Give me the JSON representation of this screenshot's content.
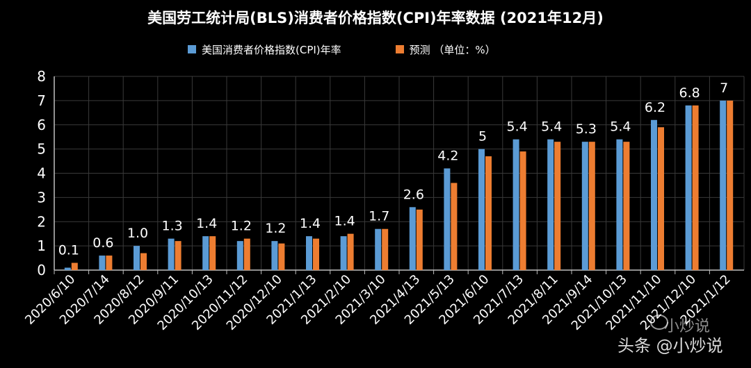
{
  "chart_data": {
    "type": "bar",
    "title": "美国劳工统计局(BLS)消费者价格指数(CPI)年率数据 (2021年12月)",
    "categories": [
      "2020/6/10",
      "2020/7/14",
      "2020/8/12",
      "2020/9/11",
      "2020/10/13",
      "2020/11/12",
      "2020/12/10",
      "2021/1/13",
      "2021/2/10",
      "2021/3/10",
      "2021/4/13",
      "2021/5/13",
      "2021/6/10",
      "2021/7/13",
      "2021/8/11",
      "2021/9/14",
      "2021/10/13",
      "2021/11/10",
      "2021/12/10",
      "2021/1/12"
    ],
    "series": [
      {
        "name": "美国消费者价格指数(CPI)年率",
        "color": "#5B9BD5",
        "values": [
          0.1,
          0.6,
          1.0,
          1.3,
          1.4,
          1.2,
          1.2,
          1.4,
          1.4,
          1.7,
          2.6,
          4.2,
          5,
          5.4,
          5.4,
          5.3,
          5.4,
          6.2,
          6.8,
          7
        ]
      },
      {
        "name": "预测 （单位：%）",
        "color": "#ED7D31",
        "values": [
          0.3,
          0.6,
          0.7,
          1.2,
          1.4,
          1.3,
          1.1,
          1.3,
          1.5,
          1.7,
          2.5,
          3.6,
          4.7,
          4.9,
          5.3,
          5.3,
          5.3,
          5.9,
          6.8,
          7
        ]
      }
    ],
    "data_labels": [
      "0.1",
      "0.6",
      "1.0",
      "1.3",
      "1.4",
      "1.2",
      "1.2",
      "1.4",
      "1.4",
      "1.7",
      "2.6",
      "4.2",
      "5",
      "5.4",
      "5.4",
      "5.3",
      "5.4",
      "6.2",
      "6.8",
      "7"
    ],
    "y_ticks": [
      "0",
      "1",
      "2",
      "3",
      "4",
      "5",
      "6",
      "7",
      "8"
    ],
    "ylim": [
      0,
      8
    ],
    "grid": true,
    "legend": "top"
  },
  "watermark": {
    "text": "头条 @小炒说",
    "secondary": "小炒说"
  }
}
